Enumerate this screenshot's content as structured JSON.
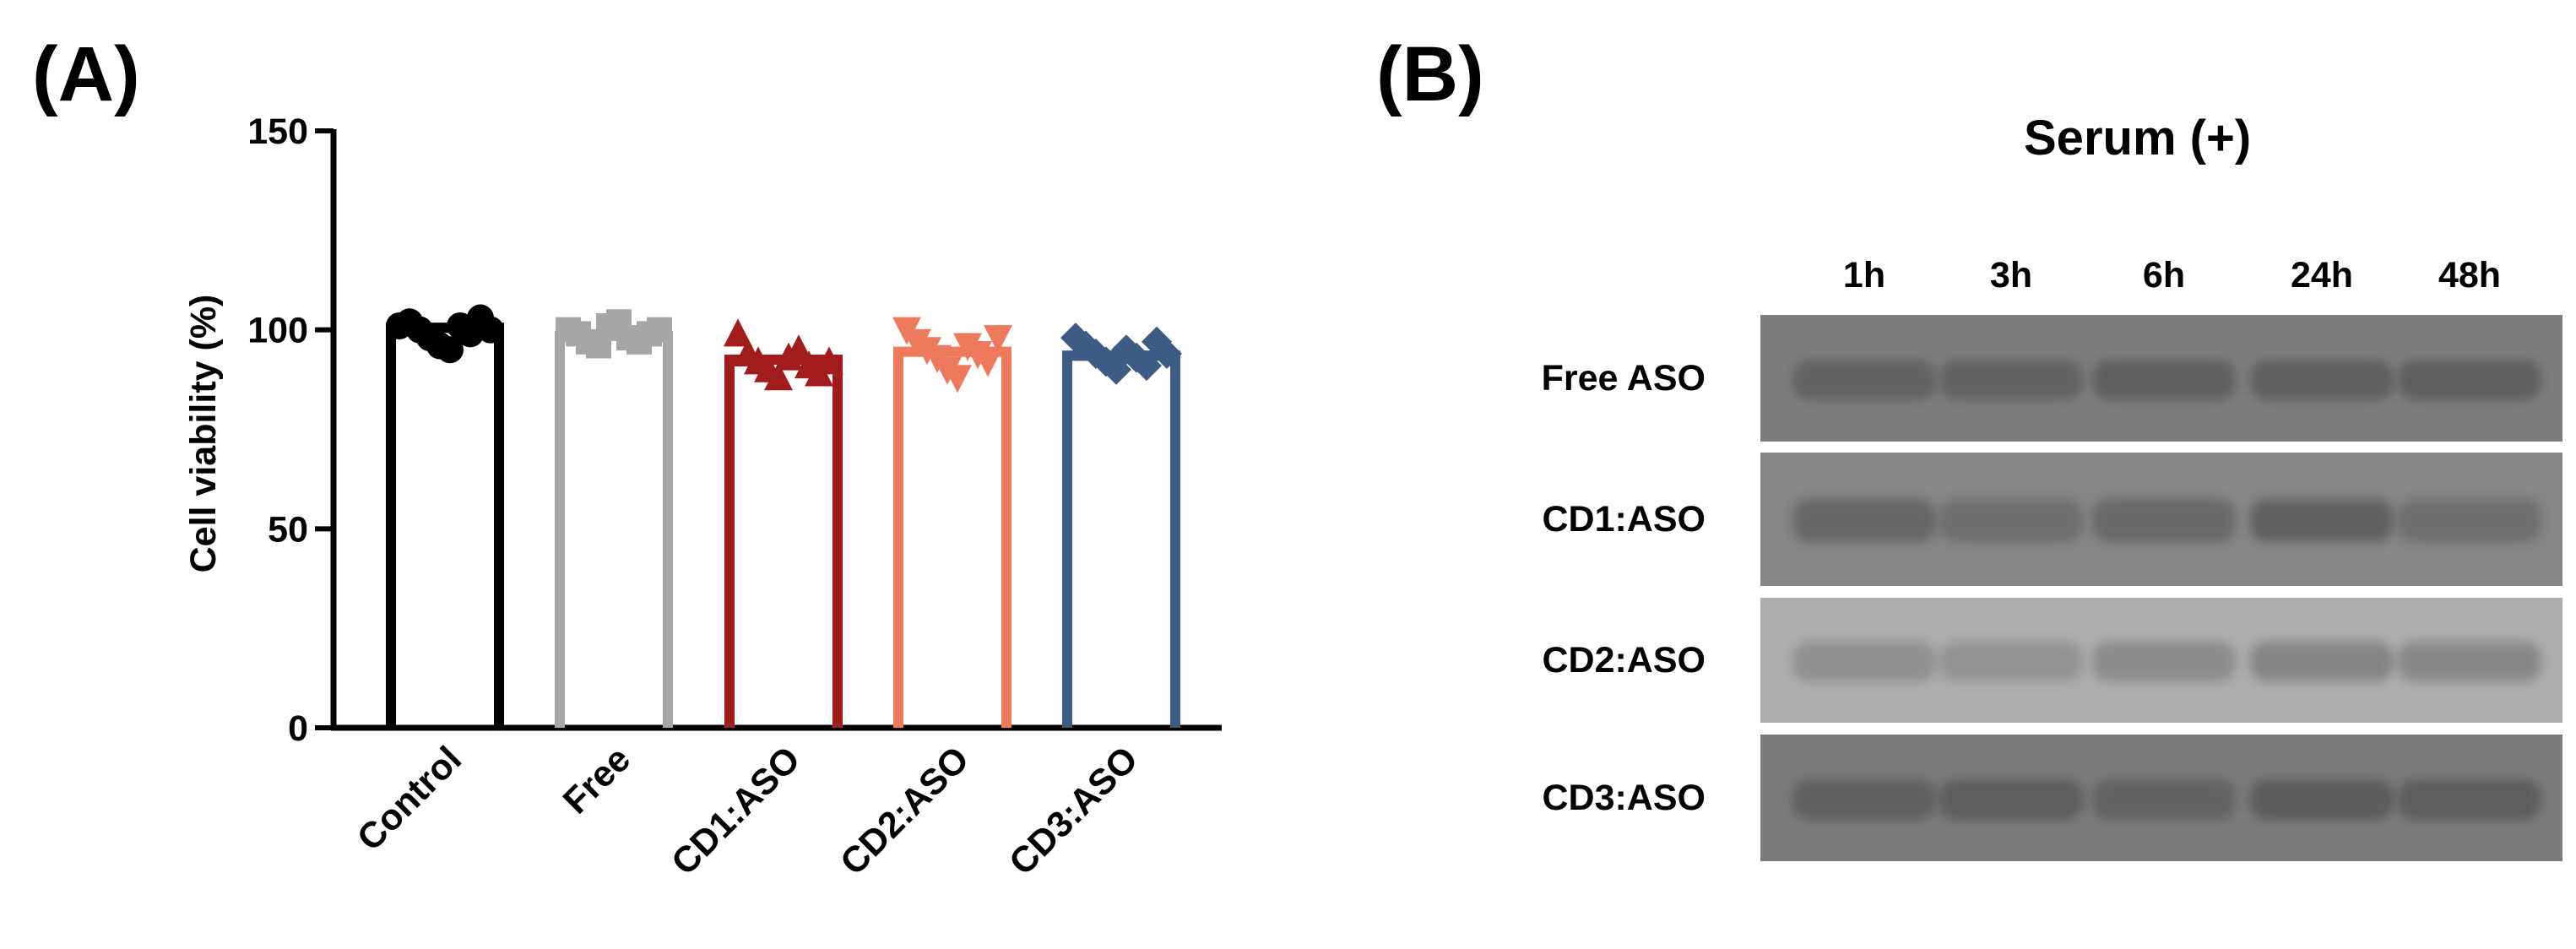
{
  "panels": {
    "a_label": "(A)",
    "b_label": "(B)"
  },
  "chart_data": {
    "type": "bar",
    "title": "",
    "xlabel": "",
    "ylabel": "Cell viability (%)",
    "ylim": [
      0,
      150
    ],
    "yticks": [
      "0",
      "50",
      "100",
      "150"
    ],
    "categories": [
      "Control",
      "Free",
      "CD1:ASO",
      "CD2:ASO",
      "CD3:ASO"
    ],
    "values": [
      100.5,
      98.5,
      92.5,
      94.5,
      93.5
    ],
    "colors": [
      "#000000",
      "#a6a6a8",
      "#a21c1c",
      "#ee7a5e",
      "#3c5c86"
    ],
    "markers": [
      "circle",
      "square",
      "triangle-up",
      "triangle-down",
      "diamond"
    ],
    "points": [
      [
        101,
        102,
        100,
        98,
        96,
        95,
        101,
        99,
        103,
        100
      ],
      [
        100,
        99,
        97,
        96,
        101,
        102,
        98,
        97,
        99,
        100
      ],
      [
        99,
        94,
        92,
        90,
        88,
        93,
        95,
        91,
        89,
        92
      ],
      [
        100,
        97,
        95,
        93,
        90,
        88,
        96,
        94,
        92,
        98
      ],
      [
        98,
        96,
        94,
        92,
        90,
        95,
        93,
        91,
        97,
        94
      ]
    ]
  },
  "gel": {
    "title": "Serum (+)",
    "timepoints": [
      "1h",
      "3h",
      "6h",
      "24h",
      "48h"
    ],
    "rows": [
      {
        "label": "Free ASO",
        "intensity": [
          0.55,
          0.55,
          0.6,
          0.6,
          0.62
        ],
        "bg": "#7d7d7d"
      },
      {
        "label": "CD1:ASO",
        "intensity": [
          0.6,
          0.45,
          0.55,
          0.7,
          0.45
        ],
        "bg": "#868686"
      },
      {
        "label": "CD2:ASO",
        "intensity": [
          0.4,
          0.35,
          0.45,
          0.55,
          0.5
        ],
        "bg": "#adadad"
      },
      {
        "label": "CD3:ASO",
        "intensity": [
          0.55,
          0.6,
          0.5,
          0.65,
          0.6
        ],
        "bg": "#7a7a7a"
      }
    ]
  }
}
